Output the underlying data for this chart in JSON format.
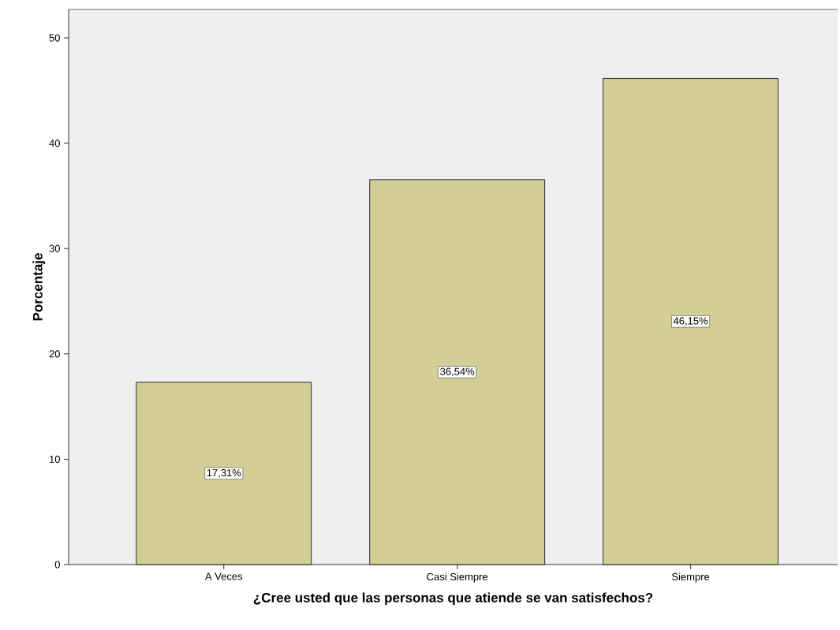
{
  "chart_data": {
    "type": "bar",
    "xlabel": "¿Cree usted que las personas que atiende se van satisfechos?",
    "ylabel": "Porcentaje",
    "categories": [
      "A Veces",
      "Casi Siempre",
      "Siempre"
    ],
    "values": [
      17.31,
      36.54,
      46.15
    ],
    "value_labels": [
      "17,31%",
      "36,54%",
      "46,15%"
    ],
    "color": "#d3ce97",
    "ylim": [
      0,
      52.7
    ],
    "yticks": [
      0,
      10,
      20,
      30,
      40,
      50
    ],
    "grid": false,
    "legend": false
  }
}
